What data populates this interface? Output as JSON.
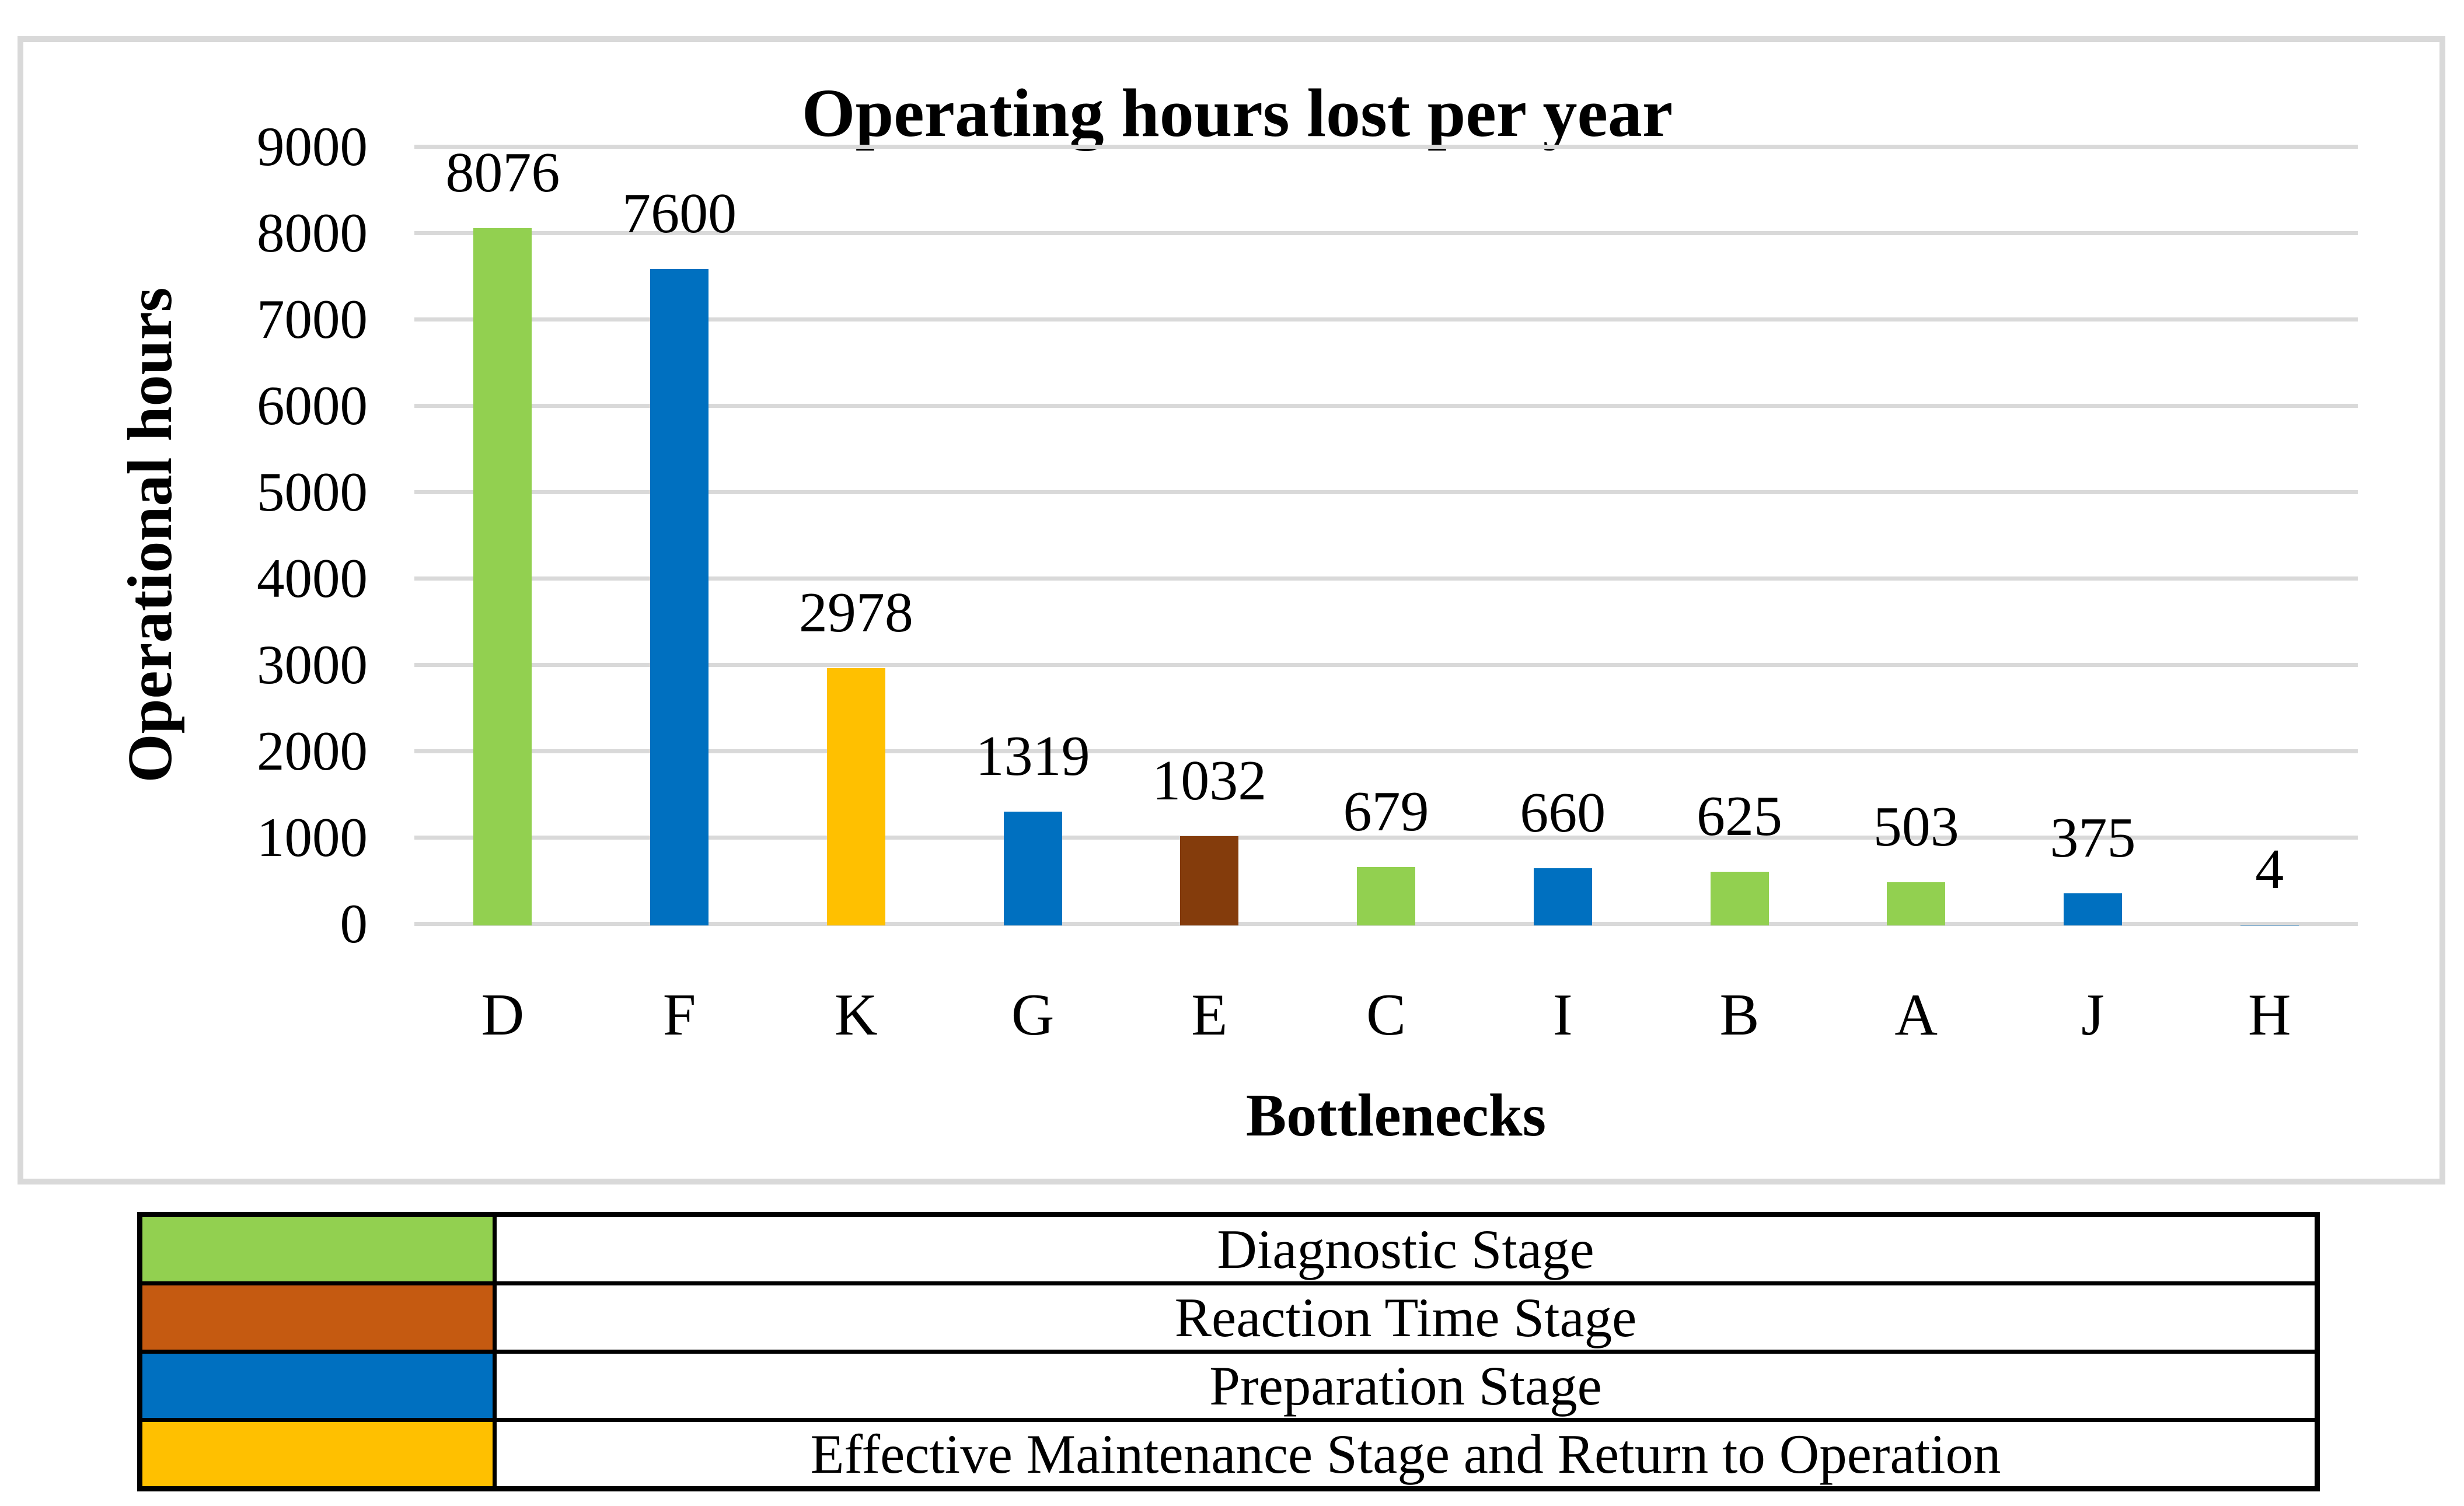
{
  "chart_data": {
    "type": "bar",
    "title": "Operating hours lost per year",
    "xlabel": "Bottlenecks",
    "ylabel": "Operational hours",
    "categories": [
      "D",
      "F",
      "K",
      "G",
      "E",
      "C",
      "I",
      "B",
      "A",
      "J",
      "H"
    ],
    "values": [
      8076,
      7600,
      2978,
      1319,
      1032,
      679,
      660,
      625,
      503,
      375,
      4
    ],
    "data_labels": [
      "8076",
      "7600",
      "2978",
      "1319",
      "1032",
      "679",
      "660",
      "625",
      "503",
      "375",
      "4"
    ],
    "bar_colors": [
      "#92D050",
      "#0070C0",
      "#FFC000",
      "#0070C0",
      "#843C0C",
      "#92D050",
      "#0070C0",
      "#92D050",
      "#92D050",
      "#0070C0",
      "#0070C0"
    ],
    "ylim": [
      0,
      9000
    ],
    "ytick_step": 1000,
    "ytick_labels": [
      "0",
      "1000",
      "2000",
      "3000",
      "4000",
      "5000",
      "6000",
      "7000",
      "8000",
      "9000"
    ],
    "grid": "horizontal",
    "legend_position": "bottom-table"
  },
  "legend": {
    "rows": [
      {
        "color": "#92D050",
        "label": "Diagnostic Stage"
      },
      {
        "color": "#C55A11",
        "label": "Reaction Time Stage"
      },
      {
        "color": "#0070C0",
        "label": "Preparation Stage"
      },
      {
        "color": "#FFC000",
        "label": "Effective Maintenance Stage and Return to Operation"
      }
    ]
  },
  "colors": {
    "gridline": "#D9D9D9",
    "figure_border": "#D9D9D9",
    "table_border": "#000000",
    "text": "#000000",
    "background": "#FFFFFF"
  }
}
